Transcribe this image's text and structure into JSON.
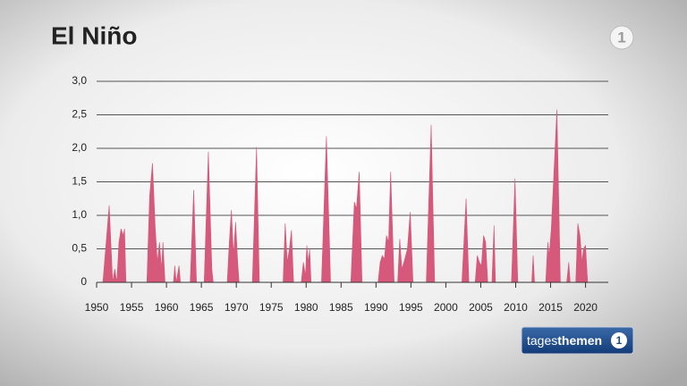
{
  "chart_data": {
    "type": "area",
    "title": "El Niño",
    "color": "#d6587a",
    "grid": true,
    "xlim": [
      1950,
      2023
    ],
    "xticks": [
      1950,
      1955,
      1960,
      1965,
      1970,
      1975,
      1980,
      1985,
      1990,
      1995,
      2000,
      2005,
      2010,
      2015,
      2020
    ],
    "ylim": [
      0,
      3
    ],
    "yticks": [
      0,
      {
        "value": 0.5,
        "label": "0,5"
      },
      {
        "value": 1,
        "label": "1,0"
      },
      {
        "value": 1.5,
        "label": "1,5"
      },
      {
        "value": 2,
        "label": "2,0"
      },
      {
        "value": 2.5,
        "label": "2,5"
      },
      {
        "value": 3,
        "label": "3,0"
      }
    ],
    "x": [
      1950.9,
      1951.8,
      1952.3,
      1952.6,
      1952.9,
      1953.2,
      1953.5,
      1953.8,
      1954.0,
      1954.2,
      1957.2,
      1957.6,
      1958.0,
      1958.4,
      1958.7,
      1959.0,
      1959.3,
      1959.5,
      1959.8,
      1961.0,
      1961.2,
      1961.4,
      1961.8,
      1962.0,
      1963.4,
      1963.9,
      1964.3,
      1965.4,
      1966.0,
      1966.5,
      1966.7,
      1968.7,
      1969.0,
      1969.3,
      1969.6,
      1969.9,
      1970.2,
      1970.4,
      1972.3,
      1972.9,
      1973.3,
      1976.7,
      1977.0,
      1977.3,
      1977.6,
      1977.9,
      1978.2,
      1979.3,
      1979.6,
      1979.9,
      1980.1,
      1980.3,
      1980.5,
      1980.7,
      1982.2,
      1982.9,
      1983.5,
      1986.4,
      1986.9,
      1987.2,
      1987.6,
      1988.0,
      1990.3,
      1990.6,
      1990.9,
      1991.2,
      1991.5,
      1991.8,
      1992.1,
      1992.6,
      1993.1,
      1993.4,
      1993.7,
      1994.0,
      1994.5,
      1994.9,
      1995.3,
      1997.2,
      1997.9,
      1998.4,
      2002.3,
      2002.9,
      2003.3,
      2004.2,
      2004.5,
      2004.8,
      2005.1,
      2005.4,
      2005.7,
      2006.0,
      2006.6,
      2006.9,
      2007.1,
      2009.4,
      2009.9,
      2010.3,
      2012.3,
      2012.5,
      2012.7,
      2014.3,
      2014.6,
      2014.8,
      2015.1,
      2015.9,
      2016.4,
      2017.3,
      2017.6,
      2017.8,
      2018.6,
      2018.9,
      2019.2,
      2019.5,
      2019.7,
      2020.0,
      2020.3
    ],
    "values": [
      0,
      1.15,
      0,
      0.2,
      0,
      0.6,
      0.8,
      0.7,
      0.8,
      0,
      0,
      1.3,
      1.78,
      0.8,
      0.3,
      0.6,
      0.2,
      0.6,
      0,
      0,
      0.25,
      0,
      0.25,
      0,
      0,
      1.38,
      0,
      0,
      1.95,
      0.2,
      0,
      0,
      0.6,
      1.08,
      0.4,
      0.9,
      0.3,
      0,
      0,
      2.02,
      0,
      0,
      0.88,
      0.3,
      0.5,
      0.78,
      0,
      0,
      0.3,
      0.1,
      0.55,
      0.3,
      0.5,
      0,
      0,
      2.18,
      0,
      0,
      1.2,
      1.1,
      1.65,
      0,
      0,
      0.3,
      0.4,
      0.35,
      0.7,
      0.6,
      1.65,
      0,
      0,
      0.65,
      0.2,
      0.3,
      0.5,
      1.05,
      0,
      0,
      2.35,
      0,
      0,
      1.25,
      0,
      0,
      0.4,
      0.3,
      0.25,
      0.7,
      0.6,
      0,
      0,
      0.85,
      0,
      0,
      1.55,
      0,
      0,
      0.4,
      0,
      0,
      0.6,
      0.4,
      0.8,
      2.58,
      0,
      0,
      0.3,
      0,
      0,
      0.88,
      0.7,
      0.3,
      0.5,
      0.55,
      0
    ]
  },
  "branding": {
    "show_prefix": "tages",
    "show_suffix": "themen",
    "channel": "1"
  }
}
